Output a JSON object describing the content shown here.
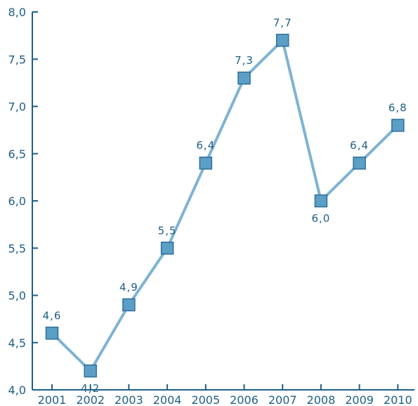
{
  "chart_data": {
    "type": "line",
    "title": "",
    "xlabel": "",
    "ylabel": "",
    "categories": [
      "2001",
      "2002",
      "2003",
      "2004",
      "2005",
      "2006",
      "2007",
      "2008",
      "2009",
      "2010"
    ],
    "series": [
      {
        "values": [
          4.6,
          4.2,
          4.9,
          5.5,
          6.4,
          7.3,
          7.7,
          6.0,
          6.4,
          6.8
        ],
        "data_labels": [
          "4,6",
          "4,2",
          "4,9",
          "5,5",
          "6,4",
          "7,3",
          "7,7",
          "6,0",
          "6,4",
          "6,8"
        ]
      }
    ],
    "ylim": [
      4.0,
      8.0
    ],
    "y_ticks": [
      4.0,
      4.5,
      5.0,
      5.5,
      6.0,
      6.5,
      7.0,
      7.5,
      8.0
    ],
    "y_tick_labels": [
      "4,0",
      "4,5",
      "5,0",
      "5,5",
      "6,0",
      "6,5",
      "7,0",
      "7,5",
      "8,0"
    ],
    "grid": false,
    "legend": "none",
    "marker": "square",
    "colors": {
      "axis": "#1f5f86",
      "line": "#7fb3d3",
      "marker_fill": "#5b9ec6",
      "marker_stroke": "#2f6f99",
      "text": "#1f5f86"
    }
  }
}
